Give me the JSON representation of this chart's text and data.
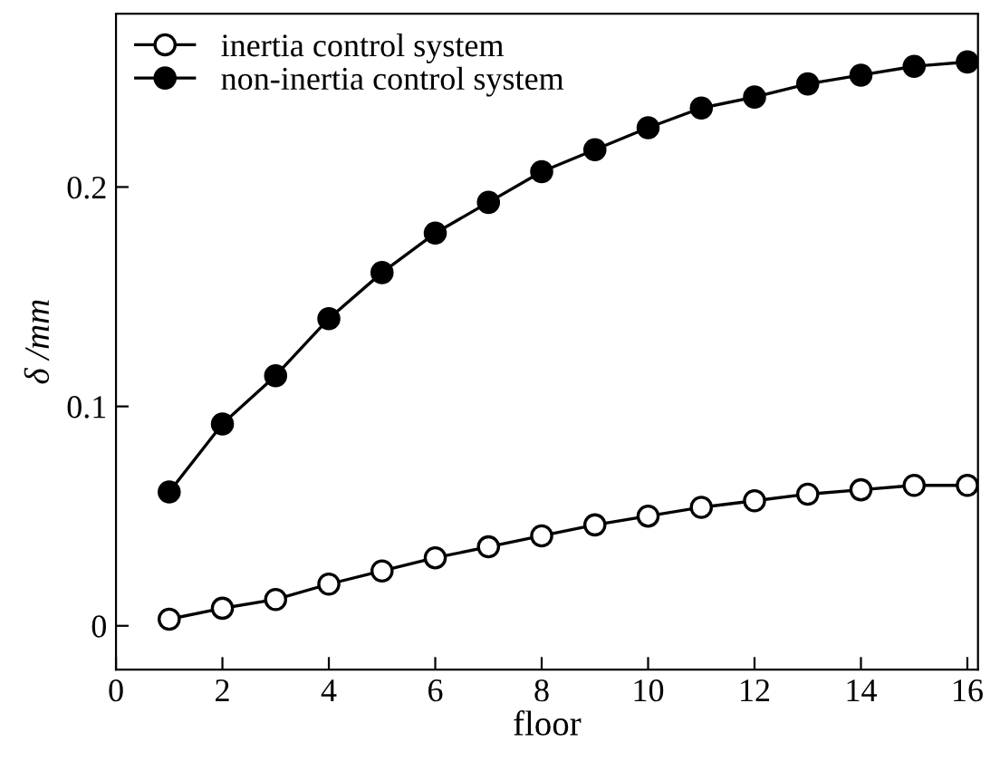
{
  "chart_data": {
    "type": "line",
    "xlabel": "floor",
    "ylabel": "δ /mm",
    "x": [
      1,
      2,
      3,
      4,
      5,
      6,
      7,
      8,
      9,
      10,
      11,
      12,
      13,
      14,
      15,
      16
    ],
    "series": [
      {
        "name": "inertia control system",
        "color": "#000000",
        "marker": "circle",
        "values": [
          0.003,
          0.008,
          0.012,
          0.019,
          0.025,
          0.031,
          0.036,
          0.041,
          0.046,
          0.05,
          0.054,
          0.057,
          0.06,
          0.062,
          0.064,
          0.064
        ]
      },
      {
        "name": "non-inertia control system",
        "color": "#000000",
        "marker": "circle",
        "values": [
          0.061,
          0.092,
          0.114,
          0.14,
          0.161,
          0.179,
          0.193,
          0.207,
          0.217,
          0.227,
          0.236,
          0.241,
          0.247,
          0.251,
          0.255,
          0.257
        ]
      }
    ],
    "xlim": [
      0,
      16.2
    ],
    "ylim": [
      -0.02,
      0.279
    ],
    "xticks": [
      0,
      2,
      4,
      6,
      8,
      10,
      12,
      14,
      16
    ],
    "yticks": [
      0,
      0.1,
      0.2
    ],
    "grid": false,
    "legend": "top left",
    "line_style": "solid"
  }
}
